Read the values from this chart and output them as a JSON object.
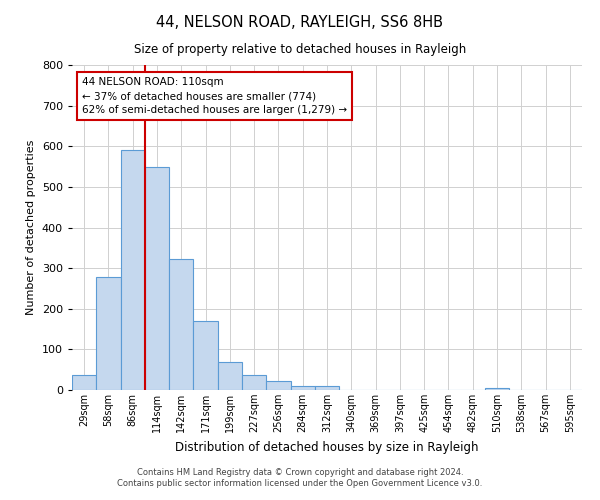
{
  "title": "44, NELSON ROAD, RAYLEIGH, SS6 8HB",
  "subtitle": "Size of property relative to detached houses in Rayleigh",
  "xlabel": "Distribution of detached houses by size in Rayleigh",
  "ylabel": "Number of detached properties",
  "bin_labels": [
    "29sqm",
    "58sqm",
    "86sqm",
    "114sqm",
    "142sqm",
    "171sqm",
    "199sqm",
    "227sqm",
    "256sqm",
    "284sqm",
    "312sqm",
    "340sqm",
    "369sqm",
    "397sqm",
    "425sqm",
    "454sqm",
    "482sqm",
    "510sqm",
    "538sqm",
    "567sqm",
    "595sqm"
  ],
  "bar_values": [
    38,
    278,
    592,
    550,
    322,
    170,
    68,
    38,
    22,
    10,
    10,
    0,
    0,
    0,
    0,
    0,
    0,
    5,
    0,
    0,
    0
  ],
  "bar_color": "#c5d8ee",
  "bar_edge_color": "#5b9bd5",
  "vline_x_index": 3,
  "vline_color": "#cc0000",
  "ylim": [
    0,
    800
  ],
  "yticks": [
    0,
    100,
    200,
    300,
    400,
    500,
    600,
    700,
    800
  ],
  "annotation_line1": "44 NELSON ROAD: 110sqm",
  "annotation_line2": "← 37% of detached houses are smaller (774)",
  "annotation_line3": "62% of semi-detached houses are larger (1,279) →",
  "annotation_box_color": "#ffffff",
  "annotation_box_edge": "#cc0000",
  "footer_line1": "Contains HM Land Registry data © Crown copyright and database right 2024.",
  "footer_line2": "Contains public sector information licensed under the Open Government Licence v3.0.",
  "background_color": "#ffffff",
  "grid_color": "#d0d0d0"
}
